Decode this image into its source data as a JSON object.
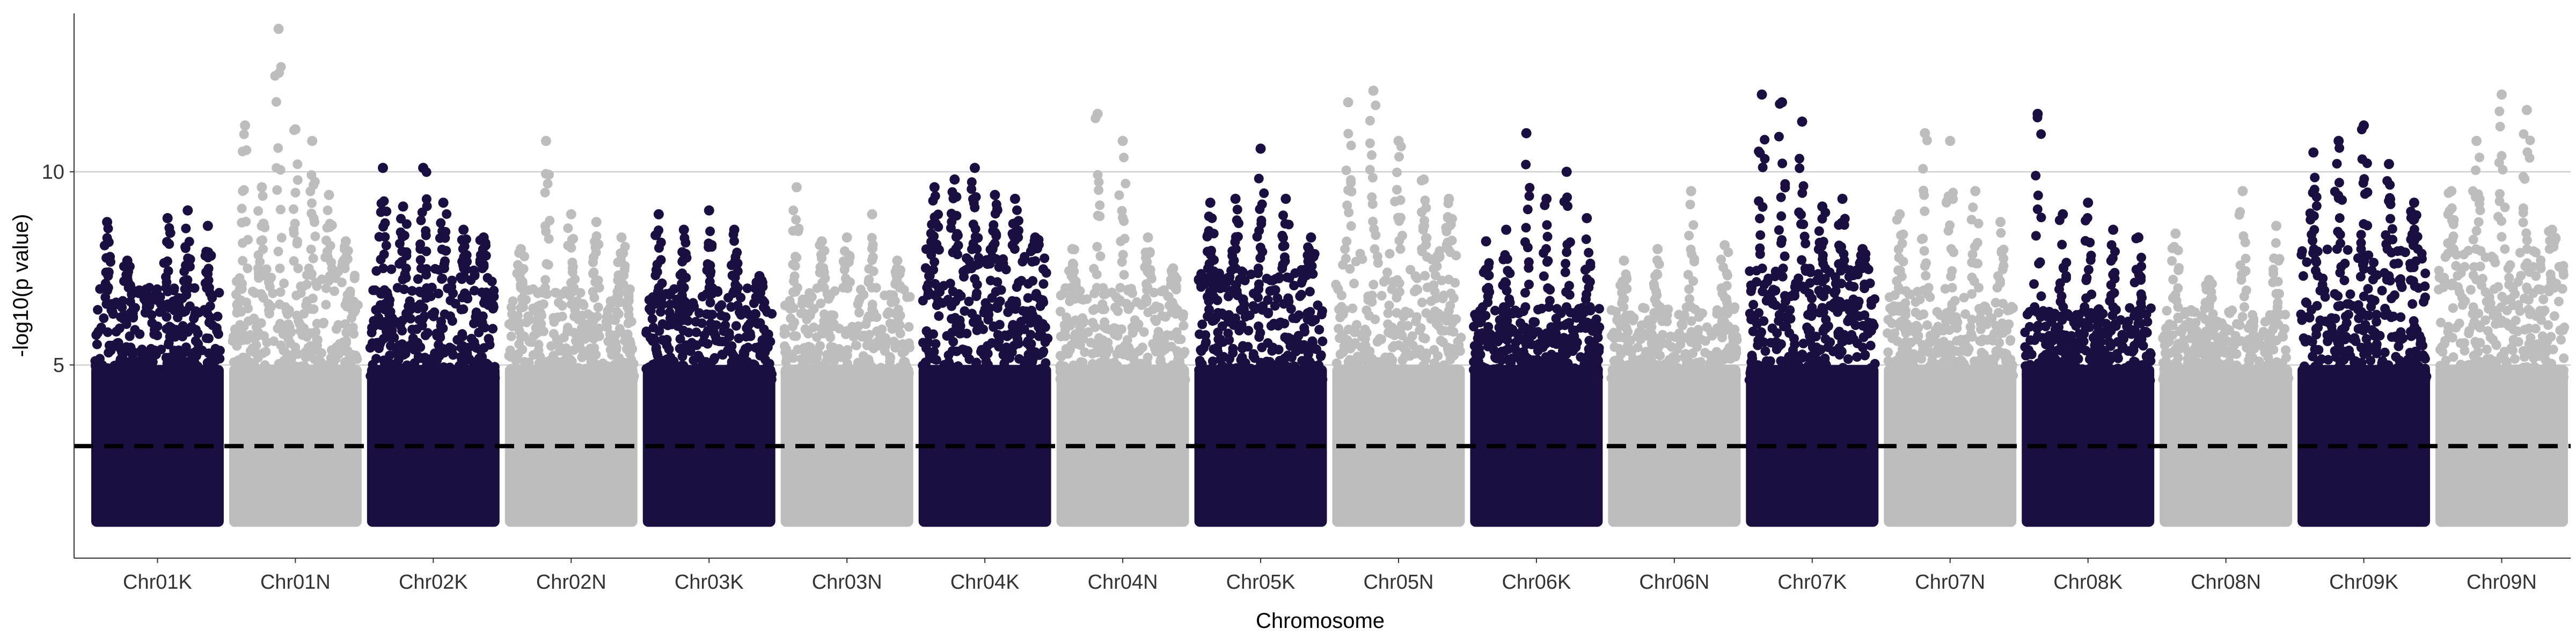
{
  "chart_data": {
    "type": "scatter",
    "subtype": "manhattan",
    "title": "",
    "xlabel": "Chromosome",
    "ylabel": "-log10(p value)",
    "ylim": [
      0,
      14.1
    ],
    "yticks": [
      5,
      10
    ],
    "grid": "horizontal-major",
    "legend": "none",
    "threshold": {
      "value": 2.9,
      "style": "dashed",
      "color": "#000000"
    },
    "palette": {
      "odd": "#1b0f42",
      "even": "#bdbdbd"
    },
    "chromosomes": [
      {
        "name": "Chr01K",
        "base_top": 7.0,
        "peaks": [
          8.7,
          7.7,
          6.5,
          8.8,
          9.0,
          8.6
        ]
      },
      {
        "name": "Chr01N",
        "base_top": 7.5,
        "peaks": [
          11.2,
          9.6,
          13.7,
          11.1,
          10.8,
          9.4,
          8.2
        ]
      },
      {
        "name": "Chr02K",
        "base_top": 7.5,
        "peaks": [
          10.1,
          9.1,
          10.1,
          9.2,
          8.5,
          8.3
        ]
      },
      {
        "name": "Chr02N",
        "base_top": 7.0,
        "peaks": [
          8.0,
          10.8,
          8.9,
          8.7,
          8.3
        ]
      },
      {
        "name": "Chr03K",
        "base_top": 7.0,
        "peaks": [
          8.9,
          8.5,
          9.0,
          8.5,
          7.3
        ]
      },
      {
        "name": "Chr03N",
        "base_top": 7.0,
        "peaks": [
          9.6,
          8.2,
          8.3,
          8.9,
          7.7
        ]
      },
      {
        "name": "Chr04K",
        "base_top": 8.0,
        "peaks": [
          9.6,
          9.8,
          10.1,
          9.4,
          9.3,
          8.3
        ]
      },
      {
        "name": "Chr04N",
        "base_top": 7.0,
        "peaks": [
          8.0,
          11.5,
          10.8,
          8.3,
          7.5
        ]
      },
      {
        "name": "Chr05K",
        "base_top": 7.5,
        "peaks": [
          9.2,
          9.3,
          10.6,
          9.3,
          8.3
        ]
      },
      {
        "name": "Chr05N",
        "base_top": 8.0,
        "peaks": [
          11.8,
          12.1,
          10.8,
          9.8,
          9.3
        ]
      },
      {
        "name": "Chr06K",
        "base_top": 6.5,
        "peaks": [
          8.2,
          8.5,
          11.0,
          9.3,
          10.0,
          8.8
        ]
      },
      {
        "name": "Chr06N",
        "base_top": 6.5,
        "peaks": [
          7.7,
          8.0,
          9.5,
          8.1
        ]
      },
      {
        "name": "Chr07K",
        "base_top": 7.5,
        "peaks": [
          12.0,
          11.8,
          11.3,
          9.1,
          9.3,
          8.0
        ]
      },
      {
        "name": "Chr07N",
        "base_top": 7.0,
        "peaks": [
          8.9,
          11.0,
          10.8,
          9.5,
          8.7
        ]
      },
      {
        "name": "Chr08K",
        "base_top": 6.5,
        "peaks": [
          11.5,
          8.9,
          9.2,
          8.5,
          8.3
        ]
      },
      {
        "name": "Chr08N",
        "base_top": 6.5,
        "peaks": [
          8.4,
          7.2,
          9.5,
          8.6
        ]
      },
      {
        "name": "Chr09K",
        "base_top": 8.0,
        "peaks": [
          10.5,
          10.8,
          11.2,
          10.2,
          9.2
        ]
      },
      {
        "name": "Chr09N",
        "base_top": 8.0,
        "peaks": [
          9.5,
          10.8,
          12.0,
          11.6,
          8.5
        ]
      }
    ]
  }
}
